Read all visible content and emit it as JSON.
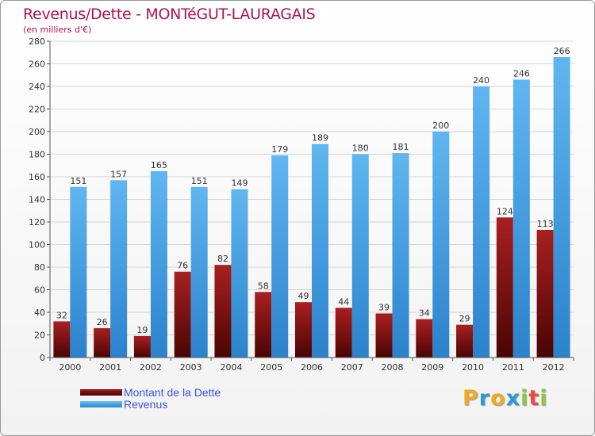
{
  "chart_data": {
    "type": "bar",
    "title": "Revenus/Dette - MONTéGUT-LAURAGAIS",
    "subtitle": "(en milliers d'€)",
    "categories": [
      "2000",
      "2001",
      "2002",
      "2003",
      "2004",
      "2005",
      "2006",
      "2007",
      "2008",
      "2009",
      "2010",
      "2011",
      "2012"
    ],
    "series": [
      {
        "name": "Montant de la Dette",
        "color": "#7a0c0c",
        "values": [
          32,
          26,
          19,
          76,
          82,
          58,
          49,
          44,
          39,
          34,
          29,
          124,
          113
        ]
      },
      {
        "name": "Revenus",
        "color": "#3f9fe6",
        "values": [
          151,
          157,
          165,
          151,
          149,
          179,
          189,
          180,
          181,
          200,
          240,
          246,
          266
        ]
      }
    ],
    "ylim": [
      0,
      280
    ],
    "yticks": [
      0,
      20,
      40,
      60,
      80,
      100,
      120,
      140,
      160,
      180,
      200,
      220,
      240,
      260,
      280
    ],
    "grid": true,
    "legend_position": "bottom-left"
  },
  "branding": {
    "letters": [
      "P",
      "r",
      "o",
      "x",
      "i",
      "t",
      "i"
    ],
    "colors": [
      "#f5a623",
      "#2a9ad6",
      "#f5a623",
      "#2a9ad6",
      "#8cc63f",
      "#e84c3d",
      "#8cc63f"
    ]
  }
}
